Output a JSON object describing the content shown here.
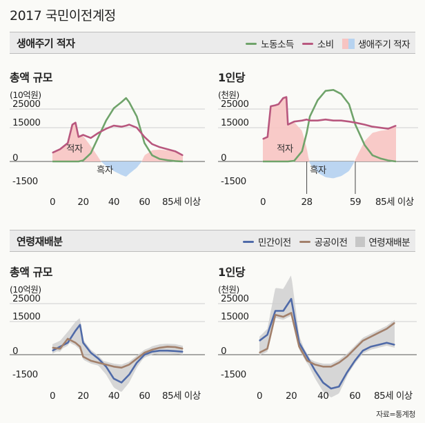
{
  "page": {
    "title": "2017 국민이전계정",
    "source": "자료=통계청"
  },
  "section1": {
    "title": "생애주기 적자",
    "legend": [
      {
        "label": "노동소득",
        "color": "#6fa36a",
        "kind": "line"
      },
      {
        "label": "소비",
        "color": "#b8577e",
        "kind": "line"
      },
      {
        "label": "생애주기 적자",
        "kind": "area-pair",
        "colors": [
          "#f7c4c2",
          "#b7d3f0"
        ]
      }
    ]
  },
  "section2": {
    "title": "연령재배분",
    "legend": [
      {
        "label": "민간이전",
        "color": "#4f6aa8",
        "kind": "line"
      },
      {
        "label": "공공이전",
        "color": "#a2806b",
        "kind": "line"
      },
      {
        "label": "연령재배분",
        "color": "#c6c6c6",
        "kind": "area"
      }
    ]
  },
  "chart_data": [
    {
      "type": "line",
      "title": "총액 규모",
      "ylabel": "(10억원)",
      "yticks": [
        "25000",
        "15000",
        "0",
        "-1500"
      ],
      "xticks": [
        "0",
        "20",
        "40",
        "60",
        "85세 이상"
      ],
      "x": [
        0,
        5,
        10,
        13,
        15,
        17,
        20,
        25,
        30,
        35,
        40,
        45,
        48,
        50,
        55,
        60,
        65,
        70,
        75,
        80,
        85
      ],
      "series": [
        {
          "name": "노동소득",
          "color": "#6fa36a",
          "values": [
            0,
            0,
            0,
            0,
            0,
            0,
            500,
            4000,
            12000,
            20000,
            26000,
            29000,
            31000,
            29000,
            22000,
            9000,
            3000,
            1200,
            600,
            200,
            0
          ]
        },
        {
          "name": "소비",
          "color": "#b8577e",
          "values": [
            4300,
            6000,
            9000,
            18000,
            19000,
            12000,
            13000,
            11500,
            14000,
            16000,
            17500,
            17000,
            17500,
            18000,
            16500,
            12000,
            8500,
            7000,
            6000,
            5000,
            3000
          ]
        }
      ],
      "annotations": [
        "적자",
        "흑자"
      ]
    },
    {
      "type": "line",
      "title": "1인당",
      "ylabel": "(천원)",
      "yticks": [
        "25000",
        "15000",
        "0",
        "-1500"
      ],
      "xticks": [
        "0",
        "28",
        "59",
        "85세 이상"
      ],
      "x": [
        0,
        3,
        5,
        8,
        10,
        13,
        15,
        16,
        20,
        25,
        28,
        30,
        35,
        40,
        45,
        50,
        55,
        59,
        65,
        70,
        75,
        80,
        85
      ],
      "series": [
        {
          "name": "노동소득",
          "color": "#6fa36a",
          "values": [
            0,
            0,
            0,
            0,
            0,
            0,
            0,
            0,
            300,
            5000,
            14000,
            22000,
            30000,
            34500,
            35000,
            33000,
            28000,
            18000,
            8000,
            3000,
            1500,
            500,
            0
          ]
        },
        {
          "name": "소비",
          "color": "#b8577e",
          "values": [
            11000,
            12000,
            27000,
            27500,
            28000,
            31000,
            31500,
            18000,
            19500,
            20000,
            20500,
            20000,
            20000,
            20500,
            20000,
            20000,
            19500,
            19000,
            18000,
            17000,
            16500,
            16000,
            17500
          ]
        }
      ],
      "annotations": [
        "적자",
        "흑자"
      ]
    },
    {
      "type": "line",
      "title": "총액 규모",
      "ylabel": "(10억원)",
      "yticks": [
        "25000",
        "15000",
        "0",
        "-1500"
      ],
      "xticks": [
        "0",
        "20",
        "40",
        "60",
        "85세 이상"
      ],
      "x": [
        0,
        5,
        10,
        15,
        18,
        20,
        25,
        30,
        35,
        40,
        45,
        50,
        55,
        60,
        65,
        70,
        75,
        80,
        85
      ],
      "series": [
        {
          "name": "민간이전",
          "color": "#4f6aa8",
          "values": [
            2000,
            4000,
            6000,
            12000,
            15000,
            6000,
            1000,
            -2000,
            -6000,
            -12000,
            -14000,
            -10000,
            -4000,
            0,
            1500,
            2000,
            2000,
            1800,
            1500
          ]
        },
        {
          "name": "공공이전",
          "color": "#a2806b",
          "values": [
            3500,
            3000,
            8000,
            6000,
            4000,
            -1000,
            -3000,
            -4000,
            -5000,
            -6000,
            -6500,
            -5000,
            -2000,
            1000,
            2500,
            3500,
            4000,
            3800,
            3000
          ]
        }
      ]
    },
    {
      "type": "line",
      "title": "1인당",
      "ylabel": "(천원)",
      "yticks": [
        "25000",
        "15000",
        "0",
        "-1500"
      ],
      "xticks": [
        "0",
        "20",
        "40",
        "60",
        "85세 이상"
      ],
      "x": [
        0,
        5,
        10,
        15,
        20,
        25,
        30,
        35,
        40,
        45,
        50,
        55,
        60,
        65,
        70,
        75,
        80,
        85
      ],
      "series": [
        {
          "name": "민간이전",
          "color": "#4f6aa8",
          "values": [
            7000,
            10000,
            22000,
            22000,
            28000,
            6000,
            -1000,
            -8000,
            -14000,
            -17000,
            -16000,
            -9000,
            -3000,
            2000,
            4000,
            5000,
            6000,
            5000
          ]
        },
        {
          "name": "공공이전",
          "color": "#a2806b",
          "values": [
            1000,
            3000,
            20000,
            19000,
            21000,
            4000,
            -3000,
            -5000,
            -6000,
            -6000,
            -4000,
            -1000,
            3000,
            7000,
            9000,
            11000,
            13000,
            16000
          ]
        }
      ]
    }
  ]
}
